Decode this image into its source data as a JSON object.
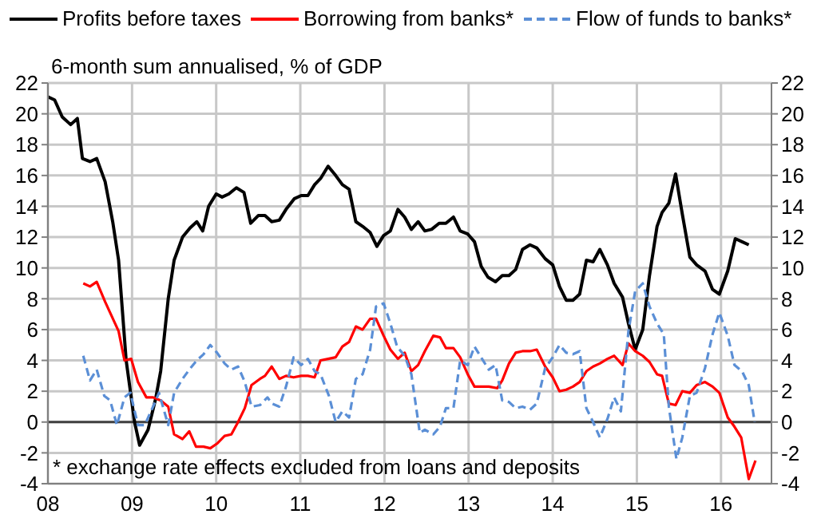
{
  "chart_data": {
    "type": "line",
    "ylabel": "6-month sum annualised, % of GDP",
    "annotations": [
      "* exchange rate effects excluded from loans and deposits"
    ],
    "xlim": [
      2008,
      2016.6
    ],
    "xticks": [
      {
        "value": 2008,
        "label": "08"
      },
      {
        "value": 2009,
        "label": "09"
      },
      {
        "value": 2010,
        "label": "10"
      },
      {
        "value": 2011,
        "label": "11"
      },
      {
        "value": 2012,
        "label": "12"
      },
      {
        "value": 2013,
        "label": "13"
      },
      {
        "value": 2014,
        "label": "14"
      },
      {
        "value": 2015,
        "label": "15"
      },
      {
        "value": 2016,
        "label": "16"
      }
    ],
    "ylim": [
      -4,
      22
    ],
    "yticks": [
      -4,
      -2,
      0,
      2,
      4,
      6,
      8,
      10,
      12,
      14,
      16,
      18,
      20,
      22
    ],
    "y2lim": [
      -4,
      22
    ],
    "y2ticks": [
      -4,
      -2,
      0,
      2,
      4,
      6,
      8,
      10,
      12,
      14,
      16,
      18,
      20,
      22
    ],
    "grid": true,
    "legend": "top",
    "marker": "none",
    "ref_lines": [
      {
        "axis": "y",
        "value": 0,
        "color": "#404040"
      }
    ],
    "series": [
      {
        "name": "Profits before taxes",
        "color": "#000000",
        "line_style": "solid",
        "x": [
          2008.0,
          2008.08,
          2008.17,
          2008.27,
          2008.35,
          2008.41,
          2008.5,
          2008.58,
          2008.68,
          2008.77,
          2008.84,
          2008.93,
          2009.03,
          2009.09,
          2009.19,
          2009.28,
          2009.34,
          2009.43,
          2009.5,
          2009.6,
          2009.69,
          2009.77,
          2009.84,
          2009.91,
          2010.0,
          2010.07,
          2010.15,
          2010.24,
          2010.33,
          2010.41,
          2010.5,
          2010.58,
          2010.66,
          2010.75,
          2010.83,
          2010.93,
          2011.01,
          2011.09,
          2011.17,
          2011.24,
          2011.33,
          2011.42,
          2011.5,
          2011.58,
          2011.66,
          2011.74,
          2011.83,
          2011.91,
          2011.99,
          2012.07,
          2012.16,
          2012.24,
          2012.32,
          2012.4,
          2012.48,
          2012.56,
          2012.65,
          2012.73,
          2012.82,
          2012.9,
          2012.99,
          2013.07,
          2013.15,
          2013.23,
          2013.32,
          2013.4,
          2013.48,
          2013.56,
          2013.64,
          2013.73,
          2013.81,
          2013.91,
          2014.0,
          2014.08,
          2014.16,
          2014.24,
          2014.32,
          2014.4,
          2014.48,
          2014.56,
          2014.65,
          2014.73,
          2014.83,
          2014.9,
          2014.98,
          2015.07,
          2015.15,
          2015.24,
          2015.3,
          2015.38,
          2015.46,
          2015.54,
          2015.63,
          2015.71,
          2015.81,
          2015.9,
          2015.98,
          2016.08,
          2016.17,
          2016.25,
          2016.33
        ],
        "values": [
          21.1,
          20.9,
          19.8,
          19.3,
          19.7,
          17.1,
          16.9,
          17.1,
          15.6,
          13,
          10.5,
          4,
          0,
          -1.5,
          -0.5,
          1.5,
          3.3,
          8,
          10.5,
          12,
          12.6,
          13,
          12.4,
          14,
          14.8,
          14.6,
          14.8,
          15.2,
          14.9,
          12.9,
          13.4,
          13.4,
          13,
          13.1,
          13.8,
          14.5,
          14.7,
          14.7,
          15.4,
          15.8,
          16.6,
          16,
          15.4,
          15.1,
          13,
          12.7,
          12.3,
          11.4,
          12.1,
          12.4,
          13.8,
          13.3,
          12.5,
          13,
          12.4,
          12.5,
          12.9,
          12.9,
          13.3,
          12.4,
          12.2,
          11.7,
          10.1,
          9.4,
          9.1,
          9.5,
          9.5,
          9.9,
          11.2,
          11.5,
          11.3,
          10.6,
          10.2,
          8.8,
          7.9,
          7.9,
          8.3,
          10.5,
          10.4,
          11.2,
          10.2,
          9,
          8.1,
          6.4,
          4.7,
          6,
          9.5,
          12.7,
          13.6,
          14.2,
          16.1,
          13.5,
          10.7,
          10.2,
          9.8,
          8.6,
          8.3,
          9.8,
          11.9,
          11.7,
          11.5
        ]
      },
      {
        "name": "Borrowing from banks*",
        "color": "#ff0000",
        "line_style": "solid",
        "x": [
          2008.42,
          2008.5,
          2008.58,
          2008.68,
          2008.84,
          2008.91,
          2008.99,
          2009.07,
          2009.17,
          2009.25,
          2009.34,
          2009.43,
          2009.5,
          2009.6,
          2009.68,
          2009.76,
          2009.85,
          2009.93,
          2010.01,
          2010.1,
          2010.18,
          2010.26,
          2010.34,
          2010.42,
          2010.52,
          2010.58,
          2010.66,
          2010.75,
          2010.83,
          2010.92,
          2011.01,
          2011.09,
          2011.17,
          2011.24,
          2011.33,
          2011.42,
          2011.5,
          2011.58,
          2011.66,
          2011.74,
          2011.83,
          2011.9,
          2011.99,
          2012.07,
          2012.16,
          2012.24,
          2012.32,
          2012.4,
          2012.48,
          2012.58,
          2012.66,
          2012.73,
          2012.82,
          2012.9,
          2012.99,
          2013.07,
          2013.16,
          2013.24,
          2013.34,
          2013.4,
          2013.48,
          2013.56,
          2013.64,
          2013.73,
          2013.81,
          2013.91,
          2014.0,
          2014.08,
          2014.16,
          2014.24,
          2014.32,
          2014.4,
          2014.48,
          2014.56,
          2014.65,
          2014.73,
          2014.83,
          2014.9,
          2014.98,
          2015.07,
          2015.15,
          2015.24,
          2015.3,
          2015.38,
          2015.46,
          2015.54,
          2015.63,
          2015.71,
          2015.81,
          2015.9,
          2015.98,
          2016.08,
          2016.16,
          2016.24,
          2016.33,
          2016.41
        ],
        "values": [
          9.0,
          8.8,
          9.1,
          7.8,
          5.9,
          4.0,
          4.1,
          2.6,
          1.6,
          1.6,
          1.4,
          1.0,
          -0.8,
          -1.1,
          -0.6,
          -1.6,
          -1.6,
          -1.7,
          -1.4,
          -0.9,
          -0.8,
          0,
          0.9,
          2.4,
          2.8,
          3.0,
          3.6,
          2.8,
          3.0,
          2.9,
          3.0,
          3.0,
          2.9,
          4.0,
          4.1,
          4.2,
          4.9,
          5.2,
          6.2,
          6.0,
          6.7,
          6.7,
          5.6,
          4.7,
          4.1,
          4.5,
          3.3,
          3.7,
          4.6,
          5.6,
          5.5,
          4.8,
          4.8,
          4.2,
          3.1,
          2.3,
          2.3,
          2.3,
          2.2,
          2.7,
          3.8,
          4.5,
          4.6,
          4.6,
          4.7,
          3.6,
          2.9,
          2.0,
          2.1,
          2.3,
          2.6,
          3.3,
          3.6,
          3.8,
          4.1,
          4.3,
          3.7,
          5.1,
          4.6,
          4.3,
          3.9,
          3.1,
          3.0,
          1.2,
          1.1,
          2.0,
          1.9,
          2.4,
          2.6,
          2.3,
          1.9,
          0.3,
          -0.3,
          -1.0,
          -3.7,
          -2.5
        ]
      },
      {
        "name": "Flow of funds to banks*",
        "color": "#5b8fd6",
        "line_style": "dashed",
        "x": [
          2008.42,
          2008.5,
          2008.58,
          2008.67,
          2008.74,
          2008.82,
          2008.91,
          2008.98,
          2009.07,
          2009.15,
          2009.25,
          2009.32,
          2009.43,
          2009.5,
          2009.6,
          2009.68,
          2009.77,
          2009.85,
          2009.93,
          2010.01,
          2010.1,
          2010.18,
          2010.26,
          2010.34,
          2010.42,
          2010.52,
          2010.61,
          2010.66,
          2010.75,
          2010.83,
          2010.92,
          2011.01,
          2011.09,
          2011.17,
          2011.24,
          2011.34,
          2011.42,
          2011.5,
          2011.58,
          2011.66,
          2011.74,
          2011.83,
          2011.9,
          2011.99,
          2012.07,
          2012.15,
          2012.24,
          2012.32,
          2012.42,
          2012.48,
          2012.58,
          2012.66,
          2012.73,
          2012.82,
          2012.9,
          2012.99,
          2013.07,
          2013.16,
          2013.24,
          2013.32,
          2013.4,
          2013.48,
          2013.56,
          2013.64,
          2013.73,
          2013.81,
          2013.91,
          2014.0,
          2014.08,
          2014.16,
          2014.24,
          2014.32,
          2014.4,
          2014.48,
          2014.56,
          2014.65,
          2014.73,
          2014.81,
          2014.9,
          2014.98,
          2015.07,
          2015.15,
          2015.24,
          2015.32,
          2015.38,
          2015.47,
          2015.54,
          2015.63,
          2015.71,
          2015.81,
          2015.9,
          2015.98,
          2016.08,
          2016.16,
          2016.25,
          2016.33,
          2016.4
        ],
        "values": [
          4.3,
          2.7,
          3.4,
          1.7,
          1.4,
          -0.2,
          1.6,
          1.9,
          -0.2,
          -0.2,
          1.0,
          1.9,
          -0.2,
          1.9,
          2.8,
          3.4,
          4.0,
          4.4,
          5.0,
          4.5,
          3.8,
          3.4,
          3.6,
          2.6,
          1.0,
          1.1,
          1.6,
          1.2,
          1.0,
          2.3,
          4.2,
          3.7,
          4.1,
          3.3,
          3.1,
          1.7,
          0,
          0.7,
          0.3,
          2.8,
          3.1,
          4.7,
          7.5,
          7.7,
          6.4,
          4.9,
          4.3,
          3.1,
          -0.7,
          -0.5,
          -0.8,
          -0.3,
          0.9,
          0.9,
          4.0,
          3.7,
          4.9,
          4.1,
          3.4,
          3.7,
          1.4,
          1.3,
          0.9,
          1.0,
          0.8,
          1.2,
          3.5,
          4.2,
          5.0,
          4.5,
          4.4,
          4.6,
          0.9,
          0,
          -1.0,
          0.2,
          1.6,
          0.7,
          5.9,
          8.5,
          9.0,
          7.5,
          6.4,
          5.7,
          1.0,
          -2.4,
          -1.0,
          1.7,
          1.9,
          3.5,
          5.7,
          7.1,
          5.6,
          3.7,
          3.3,
          2.4,
          0
        ]
      }
    ]
  }
}
